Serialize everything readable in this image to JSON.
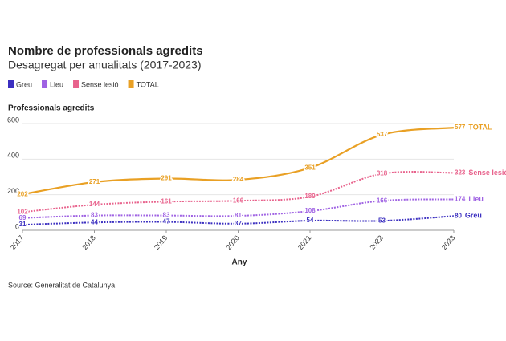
{
  "chart_data": {
    "type": "line",
    "title": "Nombre de professionals agredits",
    "subtitle": "Desagregat per anualitats (2017-2023)",
    "y_label": "Professionals agredits",
    "x_label": "Any",
    "source": "Source: Generalitat de Catalunya",
    "x": [
      2017,
      2018,
      2019,
      2020,
      2021,
      2022,
      2023
    ],
    "xlim": [
      2017,
      2023
    ],
    "xticks": [
      2017,
      2018,
      2019,
      2020,
      2021,
      2022,
      2023
    ],
    "ylim": [
      0,
      600
    ],
    "yticks": [
      0,
      200,
      400,
      600
    ],
    "grid": true,
    "series": [
      {
        "name": "Greu",
        "color": "#3b2fc0",
        "dashed": true,
        "values": [
          31,
          44,
          47,
          37,
          54,
          53,
          80
        ]
      },
      {
        "name": "Lleu",
        "color": "#9f62e3",
        "dashed": true,
        "values": [
          69,
          83,
          83,
          81,
          108,
          166,
          174
        ]
      },
      {
        "name": "Sense lesió",
        "color": "#e8628c",
        "dashed": true,
        "values": [
          102,
          144,
          161,
          166,
          189,
          318,
          323
        ]
      },
      {
        "name": "TOTAL",
        "color": "#e9a024",
        "dashed": false,
        "values": [
          202,
          271,
          291,
          284,
          351,
          537,
          577
        ]
      }
    ]
  }
}
